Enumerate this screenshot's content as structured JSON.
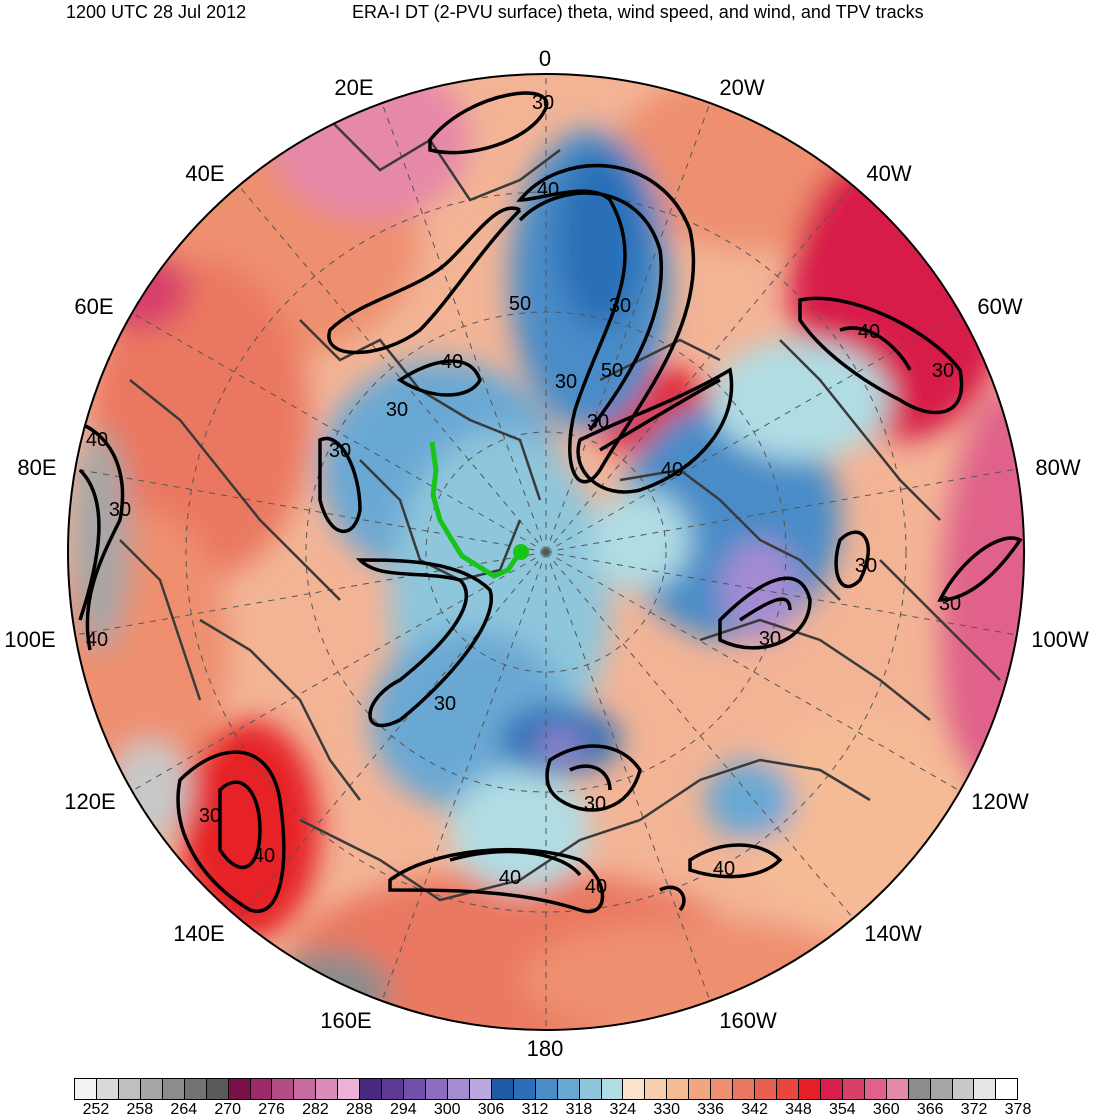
{
  "header": {
    "valid_time": "1200 UTC 28 Jul 2012",
    "title": "ERA-I DT (2-PVU surface) theta, wind speed, and wind, and TPV tracks"
  },
  "longitude_labels": {
    "0": "0",
    "20W": "20W",
    "40W": "40W",
    "60W": "60W",
    "80W": "80W",
    "100W": "100W",
    "120W": "120W",
    "140W": "140W",
    "160W": "160W",
    "180": "180",
    "160E": "160E",
    "140E": "140E",
    "120E": "120E",
    "100E": "100E",
    "80E": "80E",
    "60E": "60E",
    "40E": "40E",
    "20E": "20E"
  },
  "contour_labels": [
    "30",
    "30",
    "30",
    "30",
    "30",
    "30",
    "30",
    "30",
    "30",
    "30",
    "30",
    "30",
    "30",
    "30",
    "40",
    "40",
    "40",
    "40",
    "40",
    "40",
    "40",
    "40",
    "40",
    "40",
    "50",
    "50"
  ],
  "colorbar": {
    "colors": [
      "#f2f2f2",
      "#d9d9d9",
      "#bfbfbf",
      "#a6a6a6",
      "#8c8c8c",
      "#737373",
      "#5a5a5a",
      "#7a0f4a",
      "#9c2a6a",
      "#b44d86",
      "#c86ba0",
      "#da8cba",
      "#eeb1d8",
      "#4a2a80",
      "#5e3a96",
      "#7350ab",
      "#8b6ec0",
      "#a48bd2",
      "#bba8e0",
      "#1f5aa6",
      "#2c6fb8",
      "#4a8cc8",
      "#6aa8d4",
      "#8ec6dc",
      "#b0dde4",
      "#fbe3cc",
      "#f8cfae",
      "#f5bb95",
      "#f2a67f",
      "#ee9070",
      "#ea7861",
      "#e86050",
      "#e8473e",
      "#e62028",
      "#d81e4a",
      "#d8406a",
      "#e0628a",
      "#e688a8",
      "#8c8c8c",
      "#a6a6a6",
      "#c8c8c8",
      "#e6e6e6",
      "#ffffff"
    ],
    "labels": [
      "252",
      "258",
      "264",
      "270",
      "276",
      "282",
      "288",
      "294",
      "300",
      "306",
      "312",
      "318",
      "324",
      "330",
      "336",
      "342",
      "348",
      "354",
      "360",
      "366",
      "372",
      "378"
    ]
  }
}
